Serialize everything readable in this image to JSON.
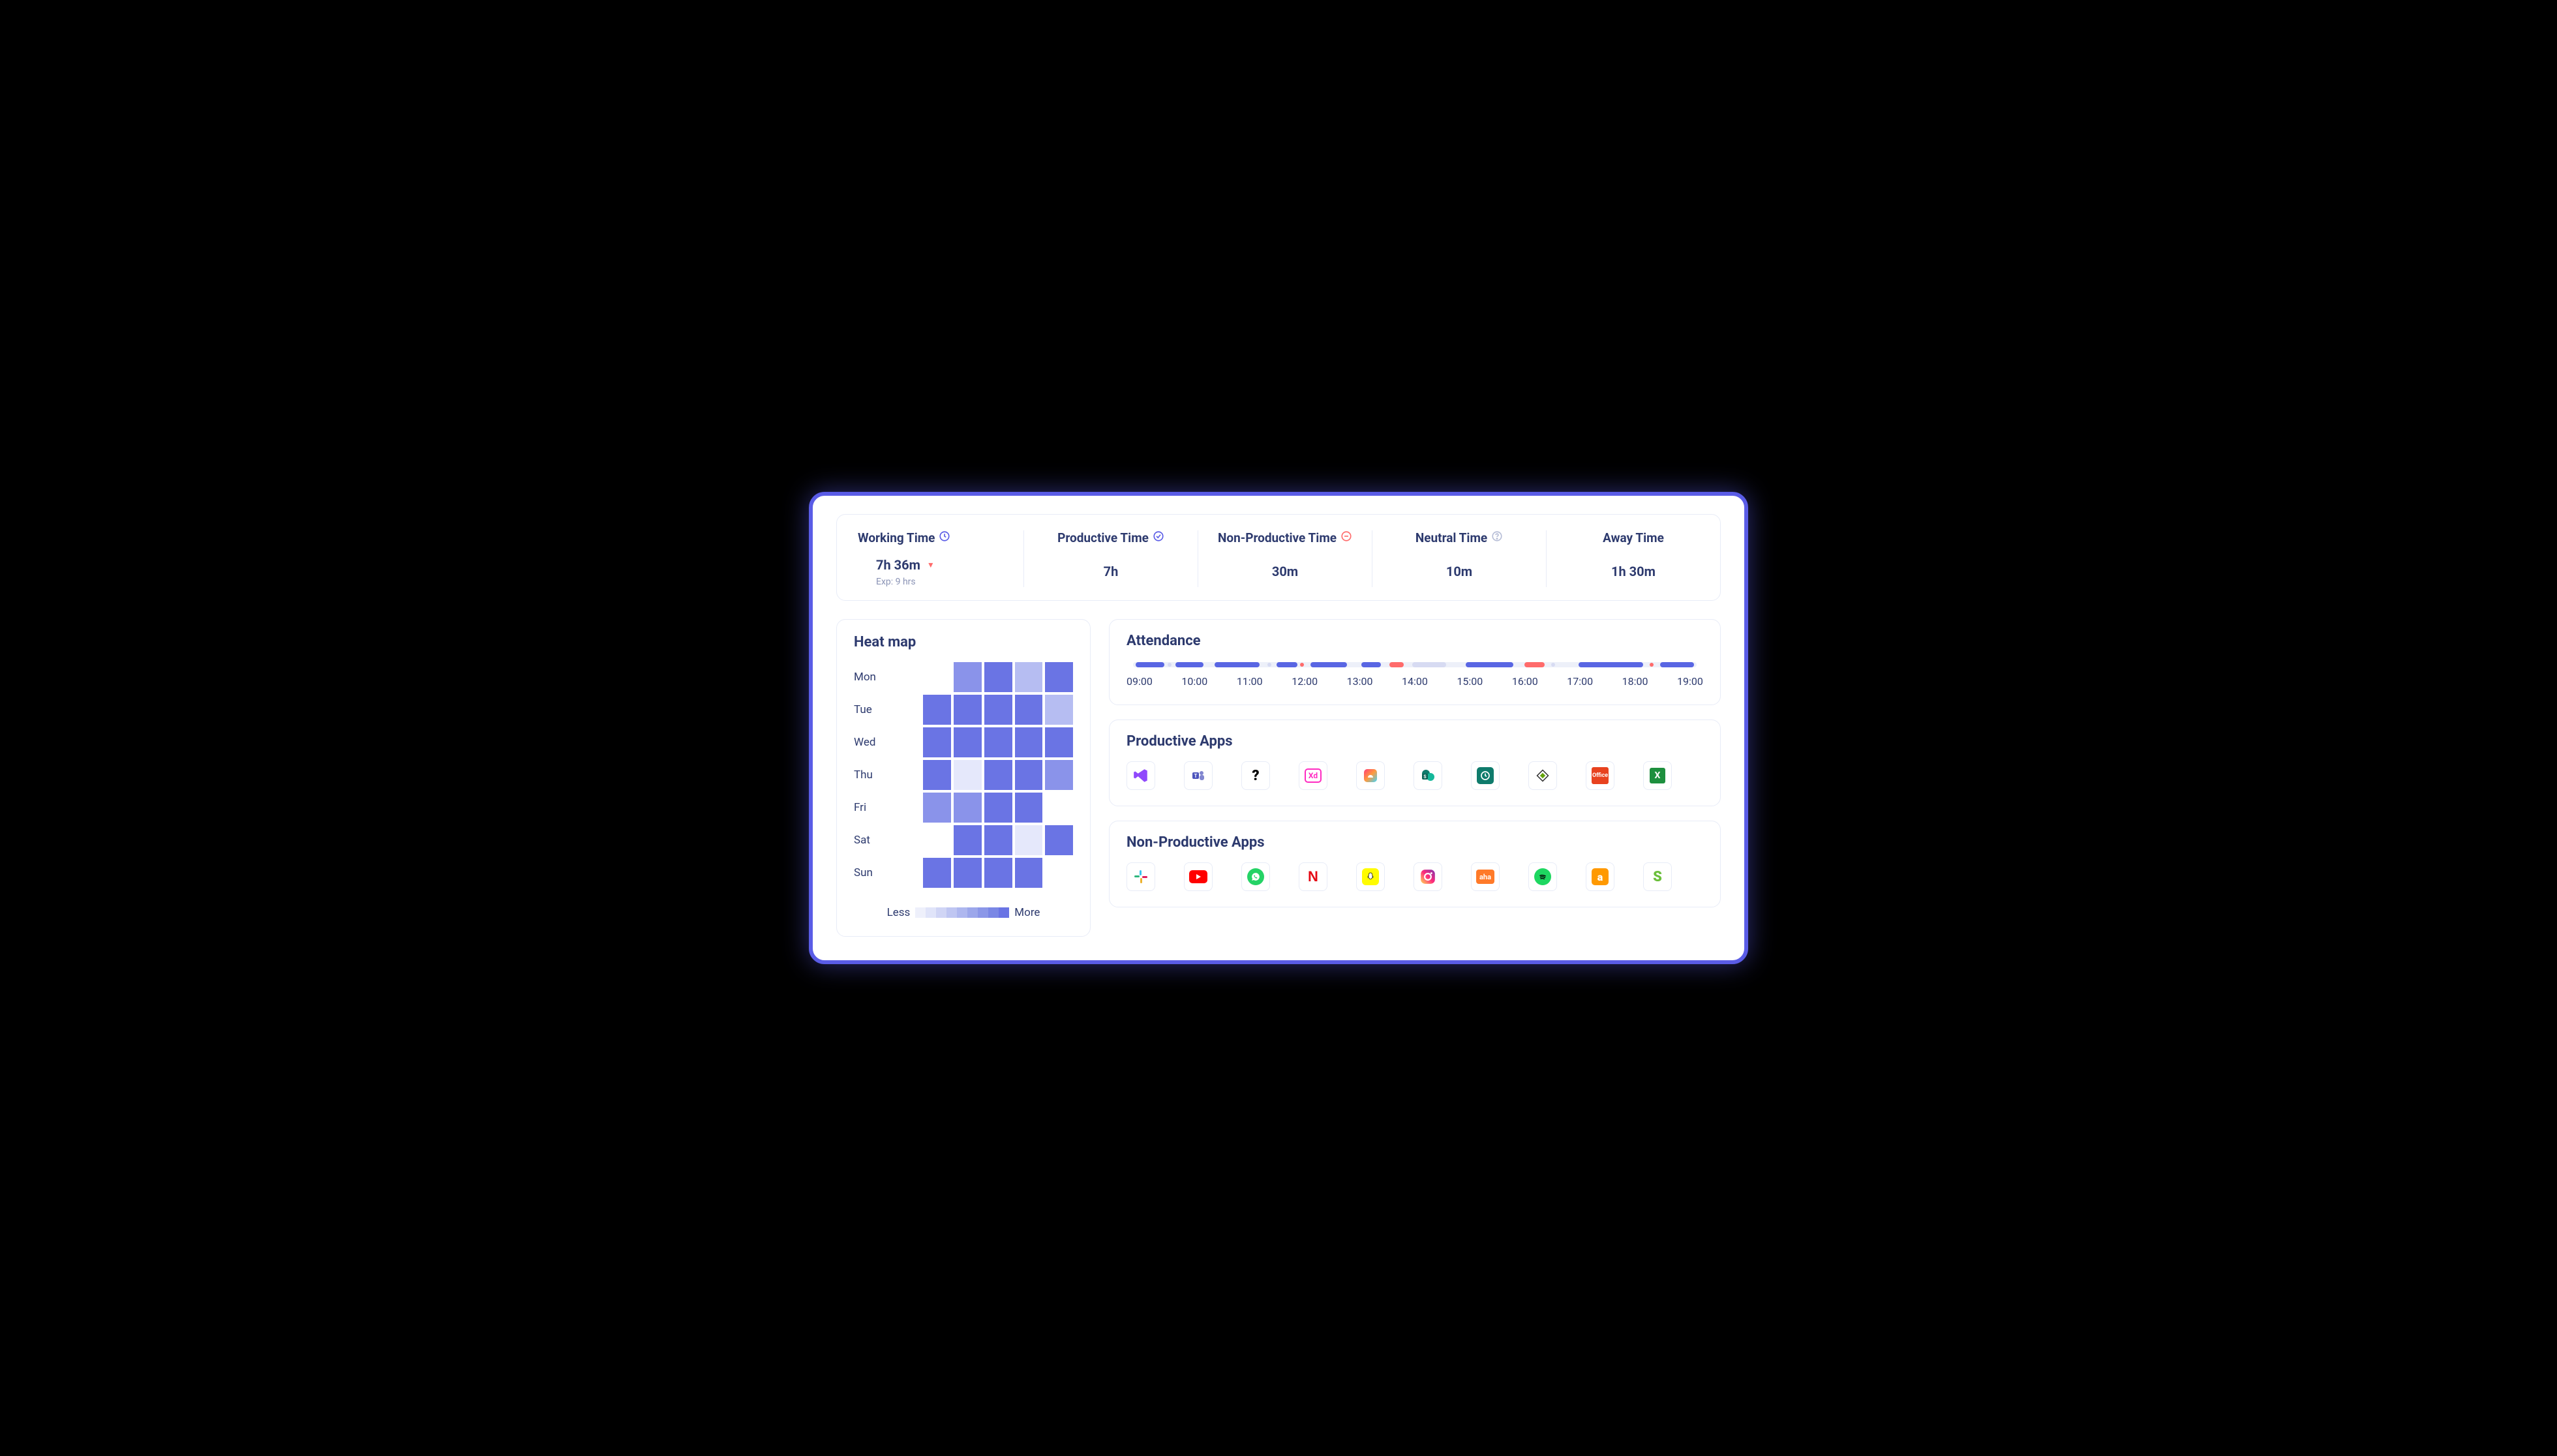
{
  "colors": {
    "accent": "#5a5ce6",
    "text": "#2d3a6e",
    "muted": "#8a93b5",
    "border": "#e8ecf7",
    "danger": "#ff6b6b",
    "track": "#edf0f9",
    "seg_primary": "#5966e3",
    "seg_muted": "#d7dbf2",
    "seg_red": "#ff6b6b"
  },
  "stats": [
    {
      "title": "Working Time",
      "icon": "clock",
      "icon_color": "#5a5ce6",
      "value": "7h 36m",
      "sub": "Exp: 9 hrs",
      "has_caret": true
    },
    {
      "title": "Productive Time",
      "icon": "check-circle",
      "icon_color": "#5a5ce6",
      "value": "7h"
    },
    {
      "title": "Non-Productive Time",
      "icon": "minus-circle",
      "icon_color": "#ff6b6b",
      "value": "30m"
    },
    {
      "title": "Neutral Time",
      "icon": "question-circle",
      "icon_color": "#b6bdd6",
      "value": "10m"
    },
    {
      "title": "Away Time",
      "value": "1h 30m"
    }
  ],
  "heatmap": {
    "title": "Heat map",
    "days": [
      "Mon",
      "Tue",
      "Wed",
      "Thu",
      "Fri",
      "Sat",
      "Sun"
    ],
    "grid": [
      [
        null,
        null,
        3,
        4,
        2,
        4
      ],
      [
        null,
        4,
        4,
        4,
        4,
        2
      ],
      [
        null,
        4,
        4,
        4,
        4,
        4
      ],
      [
        null,
        4,
        1,
        4,
        4,
        3
      ],
      [
        null,
        3,
        3,
        4,
        4,
        null
      ],
      [
        null,
        null,
        4,
        4,
        1,
        4
      ],
      [
        null,
        4,
        4,
        4,
        4,
        null
      ]
    ],
    "intensity_colors": {
      "1": "#e5e8fb",
      "2": "#b6bdf2",
      "3": "#8a93ea",
      "4": "#6a74e4"
    },
    "legend_less": "Less",
    "legend_more": "More",
    "legend_steps": [
      "#eef0fb",
      "#e0e4f9",
      "#d0d5f5",
      "#bfc6f2",
      "#aeb7ef",
      "#9ca7eb",
      "#8b97e8",
      "#7a87e5",
      "#6a74e4"
    ]
  },
  "attendance": {
    "title": "Attendance",
    "hours": [
      "09:00",
      "10:00",
      "11:00",
      "12:00",
      "13:00",
      "14:00",
      "15:00",
      "16:00",
      "17:00",
      "18:00",
      "19:00"
    ],
    "range": [
      9,
      19
    ],
    "segments": [
      {
        "start": 9.05,
        "end": 9.55,
        "color": "#5966e3"
      },
      {
        "start": 9.75,
        "end": 10.25,
        "color": "#5966e3"
      },
      {
        "start": 10.45,
        "end": 11.25,
        "color": "#5966e3"
      },
      {
        "start": 11.55,
        "end": 11.92,
        "color": "#5966e3"
      },
      {
        "start": 12.15,
        "end": 12.8,
        "color": "#5966e3"
      },
      {
        "start": 13.05,
        "end": 13.4,
        "color": "#5966e3"
      },
      {
        "start": 13.55,
        "end": 13.8,
        "color": "#ff6b6b"
      },
      {
        "start": 13.95,
        "end": 14.55,
        "color": "#d7dbf2"
      },
      {
        "start": 14.9,
        "end": 15.75,
        "color": "#5966e3"
      },
      {
        "start": 15.95,
        "end": 16.3,
        "color": "#ff6b6b"
      },
      {
        "start": 16.9,
        "end": 18.05,
        "color": "#5966e3"
      },
      {
        "start": 18.35,
        "end": 18.95,
        "color": "#5966e3"
      }
    ],
    "dots": [
      {
        "at": 9.65,
        "color": "#d7dbf2"
      },
      {
        "at": 11.42,
        "color": "#d7dbf2"
      },
      {
        "at": 12.0,
        "color": "#ff6b6b"
      },
      {
        "at": 16.45,
        "color": "#d7dbf2"
      },
      {
        "at": 18.2,
        "color": "#ff6b6b"
      }
    ]
  },
  "productive": {
    "title": "Productive Apps",
    "apps": [
      {
        "name": "visual-studio",
        "bg": "#ffffff",
        "fg": "#8a3ffc",
        "glyph": "vs"
      },
      {
        "name": "ms-teams",
        "bg": "#ffffff",
        "fg": "#4b53bc",
        "glyph": "teams"
      },
      {
        "name": "unknown-app",
        "bg": "#ffffff",
        "fg": "#000000",
        "glyph": "?"
      },
      {
        "name": "adobe-xd",
        "bg": "#ffffff",
        "fg": "#ff2bc2",
        "glyph": "Xd",
        "border": "#ff2bc2"
      },
      {
        "name": "creative-cloud",
        "bg": "#ffffff",
        "fg": "#ffffff",
        "glyph": "cc"
      },
      {
        "name": "sharepoint",
        "bg": "#ffffff",
        "fg": "#0f7b6c",
        "glyph": "sp"
      },
      {
        "name": "clock-app",
        "bg": "#0f7b6c",
        "fg": "#ffffff",
        "glyph": "clock"
      },
      {
        "name": "drive-app",
        "bg": "#ffffff",
        "fg": "#65a30d",
        "glyph": "diamond"
      },
      {
        "name": "office-365",
        "bg": "#e8421f",
        "fg": "#ffffff",
        "glyph": "O"
      },
      {
        "name": "excel",
        "bg": "#1d8f3e",
        "fg": "#ffffff",
        "glyph": "X"
      }
    ]
  },
  "nonproductive": {
    "title": "Non-Productive Apps",
    "apps": [
      {
        "name": "slack",
        "glyph": "slack"
      },
      {
        "name": "youtube",
        "bg": "#ff0000",
        "fg": "#ffffff",
        "glyph": "yt"
      },
      {
        "name": "whatsapp",
        "bg": "#25d366",
        "fg": "#ffffff",
        "glyph": "wa"
      },
      {
        "name": "netflix",
        "bg": "#ffffff",
        "fg": "#e50914",
        "glyph": "N"
      },
      {
        "name": "snapchat",
        "bg": "#fffc00",
        "fg": "#000000",
        "glyph": "ghost"
      },
      {
        "name": "instagram",
        "glyph": "ig"
      },
      {
        "name": "aha",
        "bg": "#ff7a29",
        "fg": "#ffffff",
        "glyph": "aha"
      },
      {
        "name": "spotify",
        "bg": "#1ed760",
        "fg": "#000000",
        "glyph": "sp3"
      },
      {
        "name": "amazon",
        "bg": "#ff9900",
        "fg": "#ffffff",
        "glyph": "a"
      },
      {
        "name": "app-s",
        "bg": "#ffffff",
        "fg": "#6bbf3b",
        "glyph": "S"
      }
    ]
  }
}
